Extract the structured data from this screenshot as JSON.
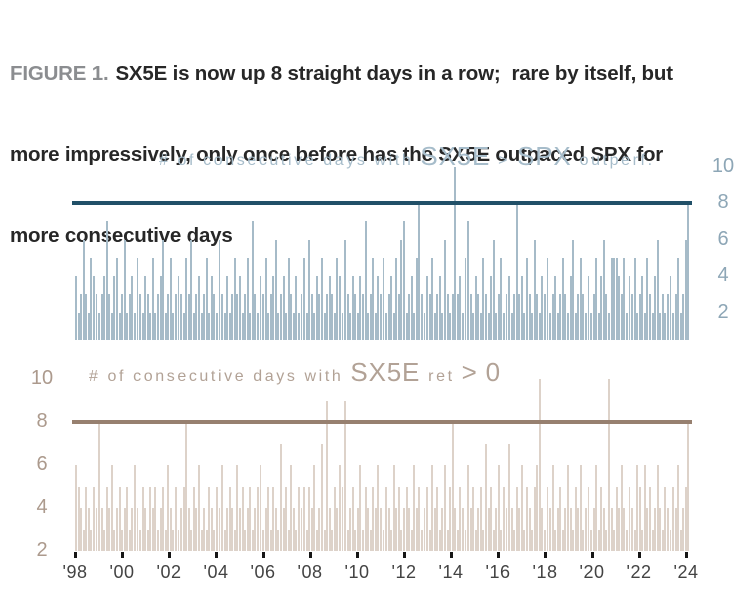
{
  "figure": {
    "title": {
      "prefix": "FIGURE 1.",
      "line1": "SX5E is now up 8 straight days in a row;  rare by itself, but",
      "line2": "more impressively, only once before has the SX5E outpaced SPX for",
      "line3": "more consecutive days"
    }
  },
  "chart_data": [
    {
      "type": "bar",
      "name": "sx5e-vs-spx-consecutive-outperformance",
      "title": "# of consecutive days with SX5E > SPX outperf.",
      "title_parts": [
        {
          "text": "# of consecutive days with ",
          "style": "sm"
        },
        {
          "text": "SX5E ",
          "style": "lg"
        },
        {
          "text": "> ",
          "style": "sm"
        },
        {
          "text": "SPX ",
          "style": "lg"
        },
        {
          "text": "outperf.",
          "style": "sm"
        }
      ],
      "threshold": 8,
      "yticks": [
        2,
        4,
        6,
        8,
        10
      ],
      "ytick_side": "right",
      "ylim": [
        0.5,
        10.5
      ],
      "x_range_years": [
        1998,
        2024.4
      ],
      "colors": {
        "bar": "#a6bbc8",
        "line": "#215068",
        "title": "#a6bcca",
        "ticks": "#8da6b6"
      },
      "values": [
        4,
        2,
        3,
        6,
        3,
        2,
        5,
        4,
        3,
        2,
        3,
        4,
        7,
        3,
        2,
        4,
        5,
        2,
        3,
        6,
        2,
        3,
        4,
        2,
        5,
        3,
        2,
        4,
        3,
        2,
        5,
        2,
        3,
        4,
        6,
        2,
        3,
        5,
        2,
        3,
        4,
        3,
        2,
        5,
        3,
        6,
        2,
        3,
        4,
        2,
        3,
        5,
        2,
        4,
        3,
        2,
        6,
        3,
        2,
        4,
        2,
        3,
        5,
        3,
        4,
        2,
        3,
        5,
        2,
        7,
        3,
        2,
        4,
        3,
        5,
        2,
        3,
        4,
        6,
        2,
        3,
        4,
        2,
        5,
        3,
        2,
        4,
        2,
        3,
        5,
        2,
        6,
        3,
        2,
        4,
        3,
        5,
        2,
        3,
        4,
        3,
        2,
        5,
        4,
        2,
        6,
        3,
        2,
        4,
        3,
        2,
        4,
        3,
        7,
        2,
        3,
        5,
        2,
        4,
        3,
        5,
        2,
        3,
        4,
        2,
        5,
        3,
        6,
        7,
        2,
        3,
        4,
        2,
        5,
        8,
        3,
        2,
        4,
        3,
        5,
        2,
        3,
        4,
        2,
        6,
        3,
        2,
        3,
        10,
        3,
        4,
        2,
        5,
        7,
        3,
        2,
        4,
        3,
        2,
        5,
        3,
        2,
        4,
        6,
        2,
        3,
        5,
        2,
        3,
        4,
        2,
        3,
        8,
        3,
        4,
        2,
        5,
        3,
        2,
        6,
        3,
        2,
        4,
        3,
        5,
        2,
        3,
        4,
        2,
        3,
        5,
        3,
        2,
        4,
        6,
        2,
        3,
        5,
        3,
        2,
        4,
        2,
        3,
        5,
        2,
        4,
        6,
        3,
        2,
        5,
        5,
        5,
        4,
        3,
        5,
        2,
        4,
        3,
        5,
        2,
        3,
        4,
        2,
        5,
        3,
        2,
        4,
        6,
        2,
        3,
        2,
        3,
        4,
        2,
        3,
        5,
        2,
        3,
        6,
        8
      ]
    },
    {
      "type": "bar",
      "name": "sx5e-consecutive-positive-days",
      "title": "# of consecutive days with SX5E ret > 0",
      "title_parts": [
        {
          "text": "# of consecutive days with ",
          "style": "sm"
        },
        {
          "text": "SX5E ",
          "style": "lg"
        },
        {
          "text": "ret ",
          "style": "sm"
        },
        {
          "text": "> 0",
          "style": "lg"
        }
      ],
      "threshold": 8,
      "yticks": [
        2,
        4,
        6,
        8,
        10
      ],
      "ytick_side": "left",
      "ylim": [
        2,
        10.5
      ],
      "x_range_years": [
        1998,
        2024.4
      ],
      "xticks": [
        "'98",
        "'00",
        "'02",
        "'04",
        "'06",
        "'08",
        "'10",
        "'12",
        "'14",
        "'16",
        "'18",
        "'20",
        "'22",
        "'24"
      ],
      "colors": {
        "bar": "#ddd2c9",
        "line": "#97806f",
        "title": "#b2a296",
        "ticks": "#ac9a8d",
        "xlabel": "#434343",
        "xtickmark": "#161616"
      },
      "values": [
        6,
        5,
        4,
        3,
        5,
        4,
        3,
        5,
        4,
        8,
        4,
        3,
        5,
        4,
        6,
        3,
        4,
        5,
        3,
        4,
        5,
        3,
        4,
        6,
        4,
        3,
        5,
        4,
        3,
        5,
        4,
        5,
        3,
        4,
        5,
        3,
        6,
        4,
        3,
        5,
        3,
        4,
        5,
        8,
        4,
        3,
        5,
        4,
        6,
        3,
        4,
        3,
        5,
        4,
        3,
        5,
        4,
        6,
        3,
        4,
        5,
        4,
        3,
        6,
        4,
        5,
        3,
        4,
        5,
        3,
        4,
        5,
        6,
        3,
        4,
        5,
        3,
        5,
        4,
        3,
        7,
        4,
        5,
        3,
        6,
        4,
        3,
        5,
        4,
        5,
        3,
        5,
        4,
        6,
        3,
        4,
        7,
        3,
        9,
        4,
        3,
        5,
        4,
        6,
        5,
        9,
        3,
        4,
        5,
        3,
        4,
        6,
        3,
        5,
        4,
        3,
        5,
        4,
        6,
        4,
        3,
        5,
        4,
        3,
        6,
        4,
        5,
        3,
        4,
        5,
        4,
        3,
        6,
        4,
        5,
        3,
        4,
        5,
        3,
        6,
        4,
        5,
        3,
        4,
        6,
        3,
        5,
        8,
        4,
        3,
        5,
        4,
        3,
        6,
        4,
        5,
        3,
        4,
        5,
        3,
        7,
        4,
        5,
        3,
        4,
        6,
        3,
        5,
        4,
        7,
        4,
        3,
        5,
        4,
        6,
        3,
        5,
        4,
        3,
        5,
        6,
        10,
        4,
        3,
        5,
        4,
        6,
        3,
        4,
        5,
        3,
        4,
        6,
        4,
        3,
        5,
        4,
        6,
        3,
        4,
        5,
        3,
        4,
        6,
        3,
        5,
        4,
        3,
        10,
        4,
        3,
        5,
        4,
        6,
        4,
        3,
        5,
        4,
        3,
        6,
        5,
        3,
        6,
        4,
        5,
        3,
        4,
        6,
        4,
        3,
        5,
        4,
        3,
        5,
        4,
        6,
        3,
        4,
        5,
        8
      ]
    }
  ]
}
